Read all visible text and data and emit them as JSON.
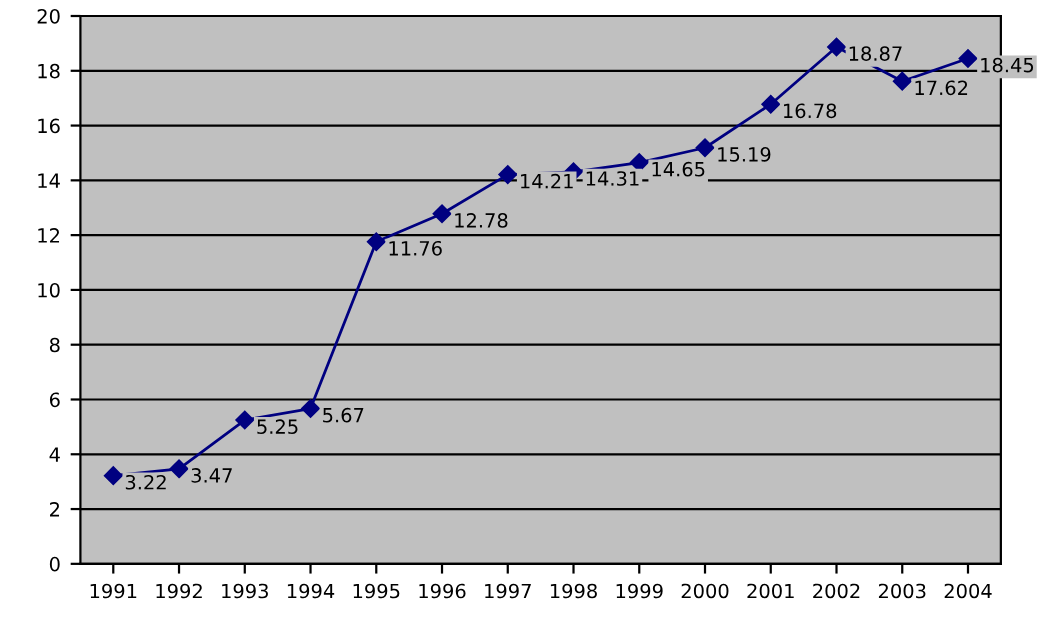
{
  "chart_data": {
    "type": "line",
    "categories": [
      "1991",
      "1992",
      "1993",
      "1994",
      "1995",
      "1996",
      "1997",
      "1998",
      "1999",
      "2000",
      "2001",
      "2002",
      "2003",
      "2004"
    ],
    "series": [
      {
        "color": "#000080",
        "values": [
          3.22,
          3.47,
          5.25,
          5.67,
          11.76,
          12.78,
          14.21,
          14.31,
          14.65,
          15.19,
          16.78,
          18.87,
          17.62,
          18.45
        ]
      }
    ],
    "ylim": [
      0,
      20
    ],
    "yticks": [
      0,
      2,
      4,
      6,
      8,
      10,
      12,
      14,
      16,
      18,
      20
    ],
    "grid": "y",
    "marker": "diamond",
    "line_style": "solid",
    "data_labels": true,
    "legend": false
  }
}
